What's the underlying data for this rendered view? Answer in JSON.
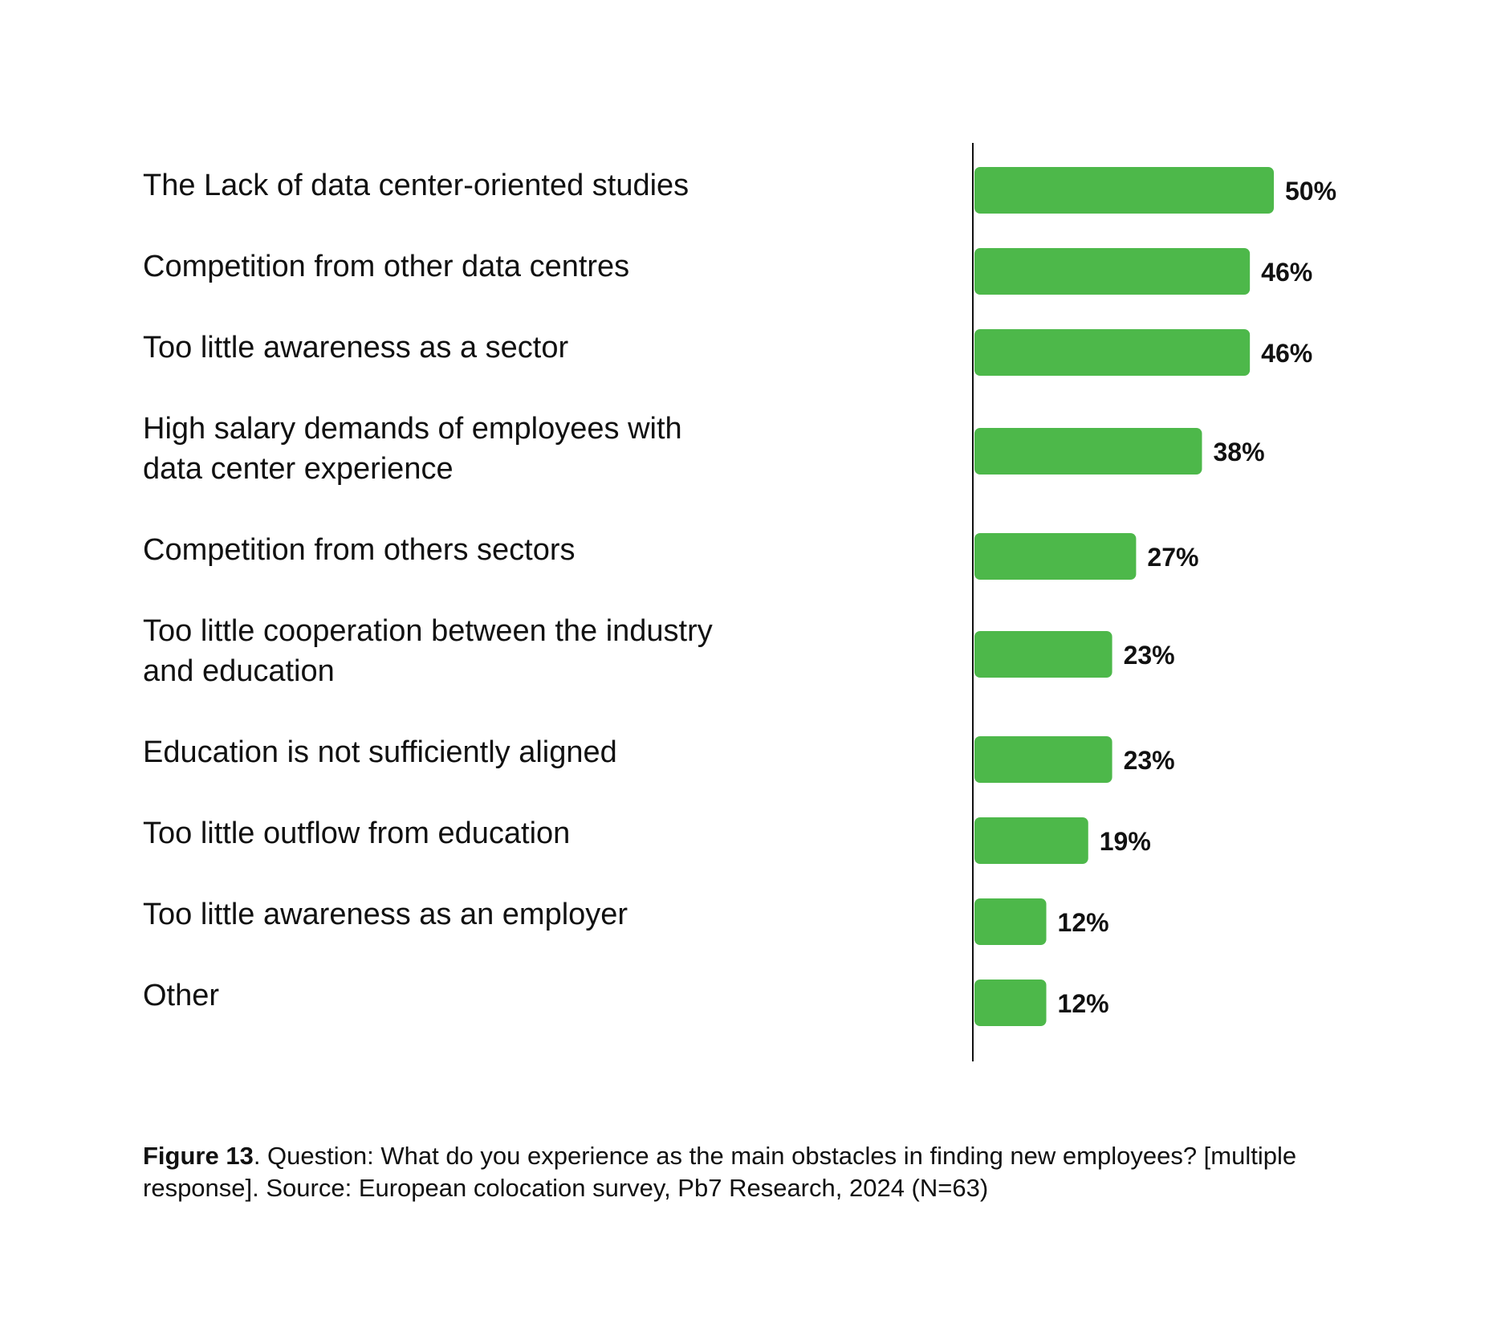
{
  "chart_data": {
    "type": "bar",
    "orientation": "horizontal",
    "categories": [
      "The Lack of data center-oriented studies",
      "Competition from other data centres",
      "Too little awareness as a sector",
      "High salary demands of employees with data center experience",
      "Competition from others sectors",
      "Too little cooperation between the industry and education",
      "Education is not sufficiently aligned",
      "Too little outflow from education",
      "Too little awareness as an employer",
      "Other"
    ],
    "category_lines": [
      [
        "The Lack of data center-oriented studies"
      ],
      [
        "Competition from other data centres"
      ],
      [
        "Too little awareness as a sector"
      ],
      [
        "High salary demands of employees with",
        "data center experience"
      ],
      [
        "Competition from others sectors"
      ],
      [
        "Too little cooperation between the industry",
        "and education"
      ],
      [
        "Education is not sufficiently aligned"
      ],
      [
        "Too little outflow from education"
      ],
      [
        "Too little awareness as an employer"
      ],
      [
        "Other"
      ]
    ],
    "values": [
      50,
      46,
      46,
      38,
      27,
      23,
      23,
      19,
      12,
      12
    ],
    "value_labels": [
      "50%",
      "46%",
      "46%",
      "38%",
      "27%",
      "23%",
      "23%",
      "19%",
      "12%",
      "12%"
    ],
    "unit": "%",
    "xlim": [
      0,
      100
    ],
    "bar_color": "#4db84a",
    "axis_color": "#111111",
    "grid": false,
    "legend": "none",
    "title": "",
    "xlabel": "",
    "ylabel": ""
  },
  "caption": {
    "figure_label": "Figure 13",
    "text": ". Question: What do you experience as the main obstacles in finding new employees? [multiple response]. Source: European colocation survey, Pb7 Research, 2024 (N=63)"
  }
}
